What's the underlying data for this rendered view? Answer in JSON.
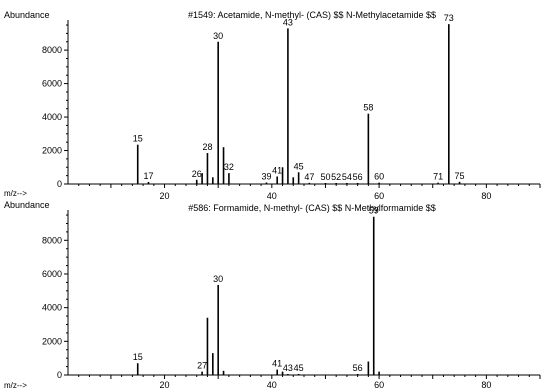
{
  "chart_data": [
    {
      "type": "bar",
      "title": "#1549: Acetamide, N-methyl- (CAS) $$ N-Methylacetamide $$",
      "ylabel": "Abundance",
      "xlabel": "m/z-->",
      "xlim": [
        2,
        90
      ],
      "ylim": [
        0,
        9800
      ],
      "xticks": [
        20,
        40,
        60,
        80
      ],
      "yticks": [
        0,
        2000,
        4000,
        6000,
        8000
      ],
      "peaks": [
        {
          "x": 15,
          "y": 2350,
          "label": "15"
        },
        {
          "x": 17,
          "y": 120,
          "label": "17"
        },
        {
          "x": 26,
          "y": 250,
          "label": "26"
        },
        {
          "x": 27,
          "y": 650
        },
        {
          "x": 28,
          "y": 1850,
          "label": "28"
        },
        {
          "x": 29,
          "y": 400
        },
        {
          "x": 30,
          "y": 8500,
          "label": "30"
        },
        {
          "x": 31,
          "y": 2200
        },
        {
          "x": 32,
          "y": 650,
          "label": "32"
        },
        {
          "x": 39,
          "y": 90,
          "label": "39"
        },
        {
          "x": 41,
          "y": 450,
          "label": "41"
        },
        {
          "x": 42,
          "y": 1000
        },
        {
          "x": 43,
          "y": 9300,
          "label": "43"
        },
        {
          "x": 44,
          "y": 400
        },
        {
          "x": 45,
          "y": 700,
          "label": "45"
        },
        {
          "x": 47,
          "y": 70,
          "label": "47"
        },
        {
          "x": 50,
          "y": 60,
          "label": "50"
        },
        {
          "x": 52,
          "y": 60,
          "label": "52"
        },
        {
          "x": 54,
          "y": 60,
          "label": "54"
        },
        {
          "x": 56,
          "y": 60,
          "label": "56"
        },
        {
          "x": 58,
          "y": 4200,
          "label": "58"
        },
        {
          "x": 60,
          "y": 80,
          "label": "60"
        },
        {
          "x": 71,
          "y": 80,
          "label": "71"
        },
        {
          "x": 73,
          "y": 9550,
          "label": "73"
        },
        {
          "x": 75,
          "y": 130,
          "label": "75"
        }
      ]
    },
    {
      "type": "bar",
      "title": "#586: Formamide, N-methyl- (CAS) $$ N-Methylformamide $$",
      "ylabel": "Abundance",
      "xlabel": "m/z-->",
      "xlim": [
        2,
        90
      ],
      "ylim": [
        0,
        9800
      ],
      "xticks": [
        20,
        40,
        60,
        80
      ],
      "yticks": [
        0,
        2000,
        4000,
        6000,
        8000
      ],
      "peaks": [
        {
          "x": 15,
          "y": 700,
          "label": "15"
        },
        {
          "x": 27,
          "y": 200,
          "label": "27"
        },
        {
          "x": 28,
          "y": 3400
        },
        {
          "x": 29,
          "y": 1300
        },
        {
          "x": 30,
          "y": 5350,
          "label": "30"
        },
        {
          "x": 31,
          "y": 250
        },
        {
          "x": 41,
          "y": 320,
          "label": "41"
        },
        {
          "x": 42,
          "y": 200
        },
        {
          "x": 43,
          "y": 60,
          "label": "43"
        },
        {
          "x": 45,
          "y": 60,
          "label": "45"
        },
        {
          "x": 56,
          "y": 60,
          "label": "56"
        },
        {
          "x": 58,
          "y": 800
        },
        {
          "x": 59,
          "y": 9400,
          "label": "59"
        },
        {
          "x": 60,
          "y": 200
        }
      ]
    }
  ]
}
